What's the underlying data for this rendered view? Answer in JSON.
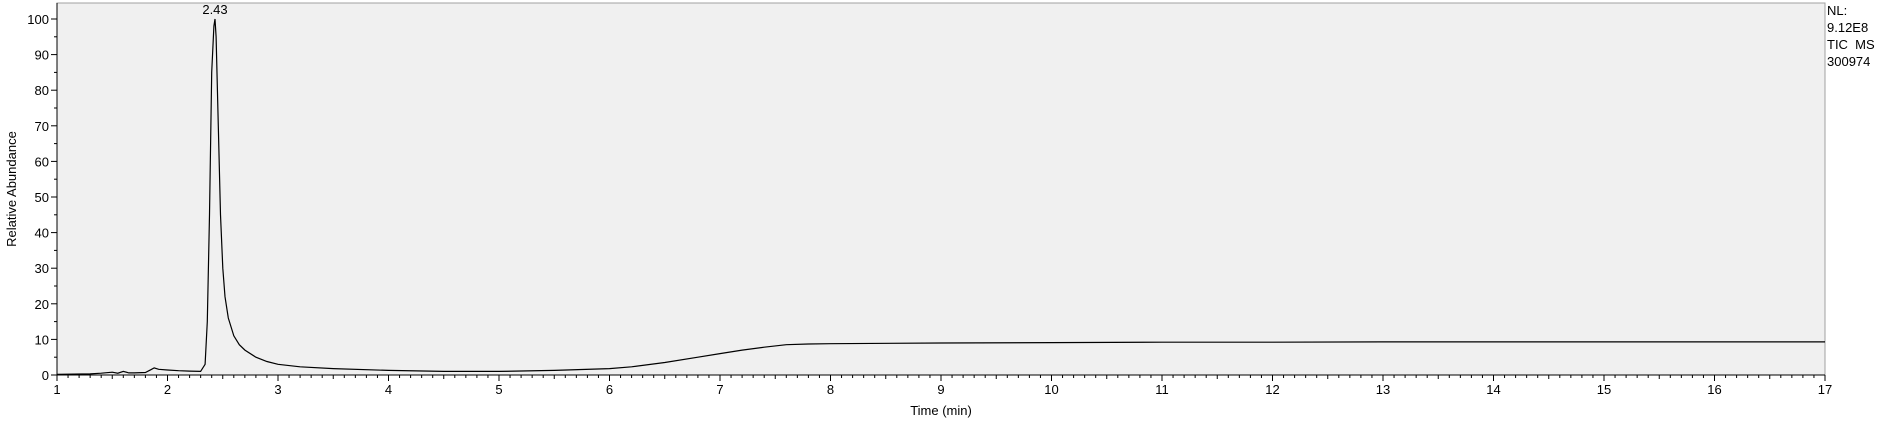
{
  "info": {
    "nl_label": "NL:",
    "nl_value": "9.12E8",
    "trace_label": "TIC  MS",
    "file_label": "300974"
  },
  "chart_data": {
    "type": "line",
    "xlabel": "Time (min)",
    "ylabel": "Relative Abundance",
    "xlim": [
      1,
      17
    ],
    "ylim": [
      0,
      100
    ],
    "xticks": [
      1,
      2,
      3,
      4,
      5,
      6,
      7,
      8,
      9,
      10,
      11,
      12,
      13,
      14,
      15,
      16,
      17
    ],
    "yticks": [
      0,
      10,
      20,
      30,
      40,
      50,
      60,
      70,
      80,
      90,
      100
    ],
    "grid": false,
    "annotations": [
      {
        "label": "2.43",
        "x": 2.43,
        "y": 100
      }
    ],
    "series": [
      {
        "x": [
          1.0,
          1.3,
          1.4,
          1.5,
          1.55,
          1.6,
          1.65,
          1.7,
          1.8,
          1.85,
          1.88,
          1.92,
          2.0,
          2.1,
          2.2,
          2.3,
          2.34,
          2.36,
          2.38,
          2.4,
          2.42,
          2.43,
          2.44,
          2.46,
          2.48,
          2.5,
          2.52,
          2.55,
          2.6,
          2.65,
          2.7,
          2.8,
          2.9,
          3.0,
          3.2,
          3.5,
          4.0,
          4.5,
          5.0,
          5.5,
          6.0,
          6.2,
          6.5,
          6.8,
          7.0,
          7.2,
          7.4,
          7.6,
          7.8,
          8.0,
          9.0,
          10.0,
          11.0,
          12.0,
          13.0,
          14.0,
          15.0,
          16.0,
          17.0
        ],
        "y": [
          0.2,
          0.3,
          0.5,
          0.8,
          0.5,
          1.0,
          0.6,
          0.6,
          0.7,
          1.5,
          2.0,
          1.6,
          1.4,
          1.2,
          1.1,
          1.0,
          3.0,
          15.0,
          45.0,
          85.0,
          98.0,
          100.0,
          95.0,
          70.0,
          45.0,
          30.0,
          22.0,
          16.0,
          11.0,
          8.5,
          7.0,
          5.0,
          3.8,
          3.0,
          2.3,
          1.8,
          1.3,
          1.0,
          1.0,
          1.3,
          1.8,
          2.3,
          3.5,
          5.0,
          6.0,
          7.0,
          7.8,
          8.5,
          8.7,
          8.8,
          9.0,
          9.1,
          9.2,
          9.2,
          9.3,
          9.3,
          9.3,
          9.3,
          9.3
        ]
      }
    ]
  }
}
